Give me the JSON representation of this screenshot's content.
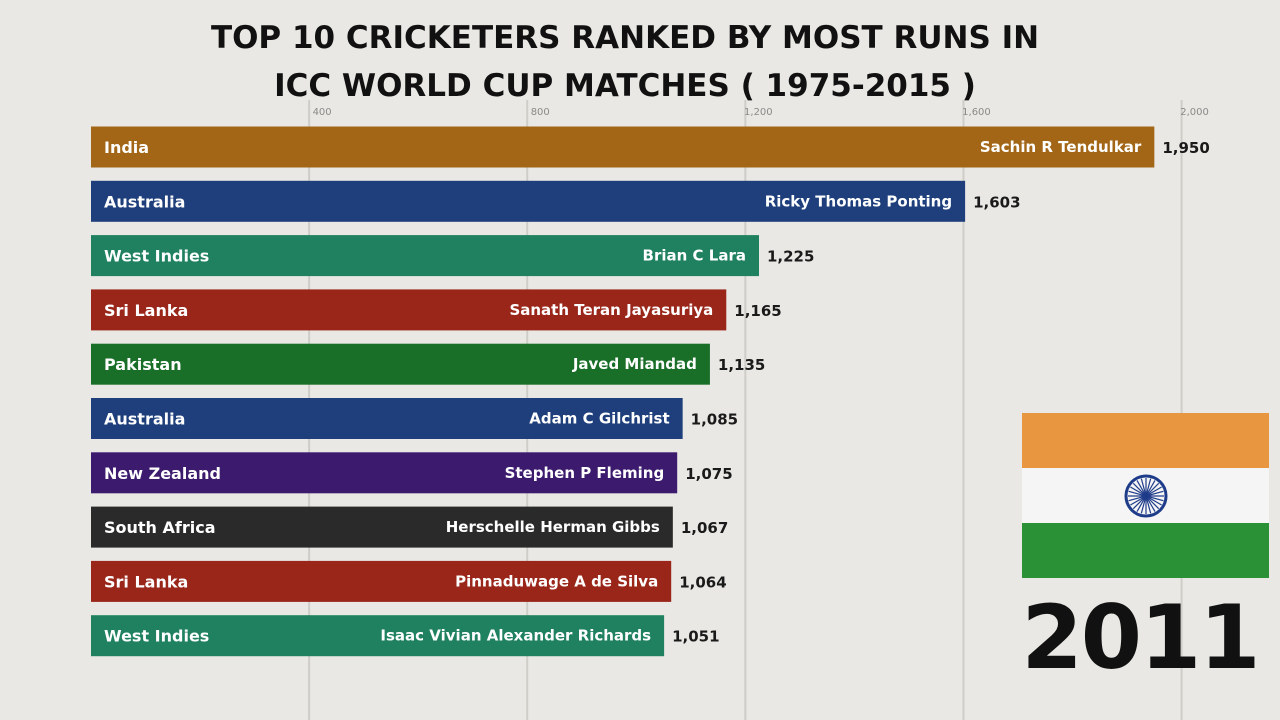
{
  "title": {
    "line1": "TOP 10 CRICKETERS RANKED BY MOST RUNS IN",
    "line2": "ICC WORLD CUP MATCHES ( 1975-2015 )"
  },
  "year": "2011",
  "flag": {
    "country": "India",
    "icon": "india-flag-icon",
    "colors": {
      "saffron": "#e8963f",
      "white": "#f5f5f5",
      "green": "#2b9136",
      "chakra": "#1f3c8a"
    }
  },
  "chart_data": {
    "type": "bar",
    "orientation": "horizontal",
    "title": "TOP 10 CRICKETERS RANKED BY MOST RUNS IN ICC WORLD CUP MATCHES ( 1975-2015 )",
    "xlabel": "",
    "ylabel": "",
    "xlim": [
      0,
      2000
    ],
    "xticks": [
      400,
      800,
      1200,
      1600,
      2000
    ],
    "xtick_labels": [
      "400",
      "800",
      "1,200",
      "1,600",
      "2,000"
    ],
    "grid": true,
    "categories": [
      "Sachin R Tendulkar",
      "Ricky Thomas Ponting",
      "Brian C Lara",
      "Sanath Teran Jayasuriya",
      "Javed Miandad",
      "Adam C Gilchrist",
      "Stephen P Fleming",
      "Herschelle Herman Gibbs",
      "Pinnaduwage A de Silva",
      "Isaac Vivian Alexander Richards"
    ],
    "countries": [
      "India",
      "Australia",
      "West Indies",
      "Sri Lanka",
      "Pakistan",
      "Australia",
      "New Zealand",
      "South Africa",
      "Sri Lanka",
      "West Indies"
    ],
    "values": [
      1950,
      1603,
      1225,
      1165,
      1135,
      1085,
      1075,
      1067,
      1064,
      1051
    ],
    "value_labels": [
      "1,950",
      "1,603",
      "1,225",
      "1,165",
      "1,135",
      "1,085",
      "1,075",
      "1,067",
      "1,064",
      "1,051"
    ],
    "country_colors": {
      "India": "#a26616",
      "Australia": "#1e3f7b",
      "West Indies": "#1f8160",
      "Sri Lanka": "#9a261a",
      "Pakistan": "#196f28",
      "New Zealand": "#3c1b6f",
      "South Africa": "#2a2a2a"
    }
  }
}
